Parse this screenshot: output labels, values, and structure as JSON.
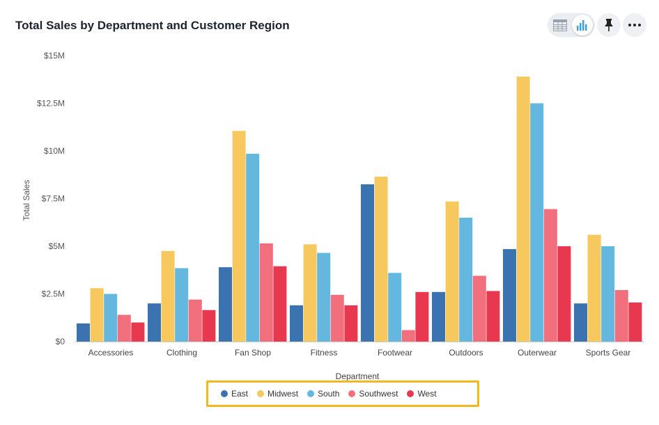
{
  "header": {
    "title": "Total Sales by Department and Customer Region"
  },
  "toolbar": {
    "table_icon": "table-icon",
    "chart_icon": "bar-chart-icon",
    "pin_icon": "pin-icon",
    "more_icon": "more-horizontal-icon"
  },
  "chart_data": {
    "type": "bar",
    "title": "Total Sales by Department and Customer Region",
    "xlabel": "Department",
    "ylabel": "Total Sales",
    "ylim": [
      0,
      15000000
    ],
    "yticks": [
      0,
      2500000,
      5000000,
      7500000,
      10000000,
      12500000,
      15000000
    ],
    "ytick_labels": [
      "$0",
      "$2.5M",
      "$5M",
      "$7.5M",
      "$10M",
      "$12.5M",
      "$15M"
    ],
    "grid": false,
    "legend_position": "bottom",
    "categories": [
      "Accessories",
      "Clothing",
      "Fan Shop",
      "Fitness",
      "Footwear",
      "Outdoors",
      "Outerwear",
      "Sports Gear"
    ],
    "series": [
      {
        "name": "East",
        "color": "#3b73b0",
        "values": [
          950000,
          2000000,
          3900000,
          1900000,
          8250000,
          2600000,
          4850000,
          2000000
        ]
      },
      {
        "name": "Midwest",
        "color": "#f6c85e",
        "values": [
          2800000,
          4750000,
          11050000,
          5100000,
          8650000,
          7350000,
          13900000,
          5600000
        ]
      },
      {
        "name": "South",
        "color": "#64b8e0",
        "values": [
          2500000,
          3850000,
          9850000,
          4650000,
          3600000,
          6500000,
          12500000,
          5000000
        ]
      },
      {
        "name": "Southwest",
        "color": "#f2707e",
        "values": [
          1400000,
          2200000,
          5150000,
          2450000,
          600000,
          3450000,
          6950000,
          2700000
        ]
      },
      {
        "name": "West",
        "color": "#e8384f",
        "values": [
          1000000,
          1650000,
          3950000,
          1900000,
          2600000,
          2650000,
          5000000,
          2050000
        ]
      }
    ]
  }
}
